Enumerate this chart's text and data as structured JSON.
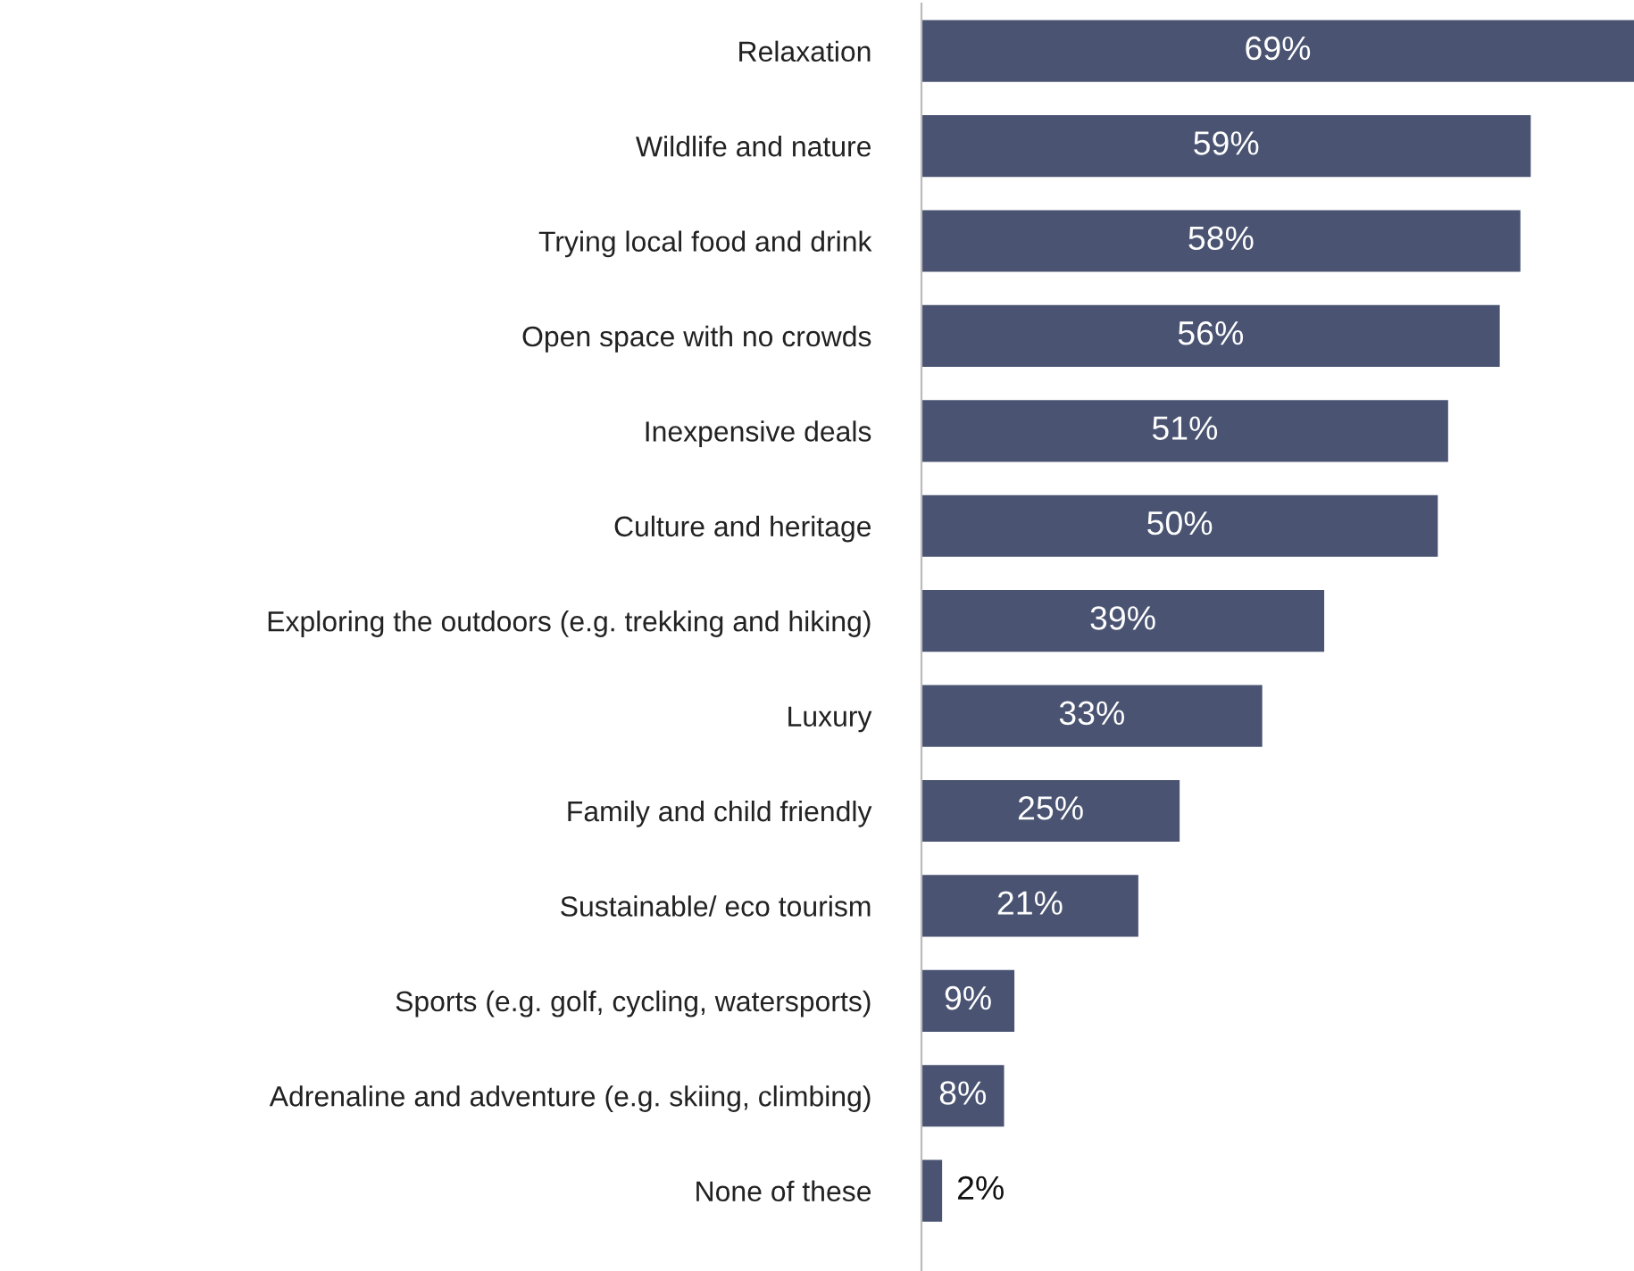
{
  "chart_data": {
    "type": "bar",
    "orientation": "horizontal",
    "categories": [
      "Relaxation",
      "Wildlife and nature",
      "Trying local food and drink",
      "Open space with no crowds",
      "Inexpensive deals",
      "Culture and heritage",
      "Exploring the outdoors (e.g. trekking and hiking)",
      "Luxury",
      "Family and child friendly",
      "Sustainable/ eco tourism",
      "Sports (e.g. golf, cycling, watersports)",
      "Adrenaline and adventure (e.g. skiing, climbing)",
      "None of these"
    ],
    "values": [
      69,
      59,
      58,
      56,
      51,
      50,
      39,
      33,
      25,
      21,
      9,
      8,
      2
    ],
    "color": "#4a5472",
    "value_labels": [
      "69%",
      "59%",
      "58%",
      "56%",
      "51%",
      "50%",
      "39%",
      "33%",
      "25%",
      "21%",
      "9%",
      "8%",
      "2%"
    ],
    "grid": false,
    "legend": false
  }
}
